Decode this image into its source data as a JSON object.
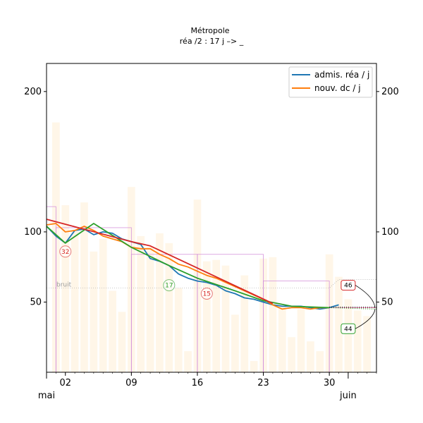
{
  "chart_data": {
    "type": "line",
    "title": "Métropole",
    "subtitle": "réa /2 : 17 j –> _",
    "x_range": [
      "2020-04-30",
      "2020-06-04"
    ],
    "y_range": [
      0,
      220
    ],
    "x_tick_labels": [
      {
        "date": "2020-05-02",
        "label": "02"
      },
      {
        "date": "2020-05-09",
        "label": "09"
      },
      {
        "date": "2020-05-16",
        "label": "16"
      },
      {
        "date": "2020-05-23",
        "label": "23"
      },
      {
        "date": "2020-05-30",
        "label": "30"
      }
    ],
    "x_secondary_labels": [
      {
        "date": "2020-04-30",
        "label": "mai"
      },
      {
        "date": "2020-06-01",
        "label": "juin"
      }
    ],
    "y_ticks": [
      50,
      100,
      200
    ],
    "y_ticks_right": [
      50,
      100,
      200
    ],
    "legend": {
      "placement": "top-right",
      "entries": [
        "admis. réa / j",
        "nouv. dc / j"
      ]
    },
    "noise_label": "bruit",
    "noise_level": 60,
    "noise_level_after": 66,
    "series": [
      {
        "name": "admis. réa / j",
        "color": "#1f77b4",
        "x": [
          "2020-04-30",
          "2020-05-01",
          "2020-05-02",
          "2020-05-03",
          "2020-05-04",
          "2020-05-05",
          "2020-05-06",
          "2020-05-07",
          "2020-05-08",
          "2020-05-09",
          "2020-05-10",
          "2020-05-11",
          "2020-05-12",
          "2020-05-13",
          "2020-05-14",
          "2020-05-15",
          "2020-05-16",
          "2020-05-17",
          "2020-05-18",
          "2020-05-19",
          "2020-05-20",
          "2020-05-21",
          "2020-05-22",
          "2020-05-23",
          "2020-05-24",
          "2020-05-25",
          "2020-05-26",
          "2020-05-27",
          "2020-05-28",
          "2020-05-29",
          "2020-05-30",
          "2020-05-31"
        ],
        "values": [
          104,
          97,
          92,
          101,
          102,
          98,
          100,
          99,
          95,
          93,
          91,
          81,
          79,
          76,
          70,
          67,
          65,
          64,
          62,
          58,
          56,
          53,
          52,
          50,
          48,
          47,
          47,
          47,
          46,
          45,
          46,
          48
        ]
      },
      {
        "name": "nouv. dc / j",
        "color": "#ff7f0e",
        "x": [
          "2020-04-30",
          "2020-05-01",
          "2020-05-02",
          "2020-05-03",
          "2020-05-04",
          "2020-05-05",
          "2020-05-06",
          "2020-05-07",
          "2020-05-08",
          "2020-05-09",
          "2020-05-10",
          "2020-05-11",
          "2020-05-12",
          "2020-05-13",
          "2020-05-14",
          "2020-05-15",
          "2020-05-16",
          "2020-05-17",
          "2020-05-18",
          "2020-05-19",
          "2020-05-20",
          "2020-05-21",
          "2020-05-22",
          "2020-05-23",
          "2020-05-24",
          "2020-05-25",
          "2020-05-26",
          "2020-05-27",
          "2020-05-28",
          "2020-05-29",
          "2020-05-30"
        ],
        "values": [
          105,
          106,
          100,
          101,
          104,
          101,
          97,
          95,
          93,
          89,
          88,
          88,
          84,
          81,
          77,
          75,
          72,
          69,
          67,
          64,
          61,
          58,
          55,
          52,
          48,
          45,
          46,
          46,
          45,
          46,
          46
        ]
      },
      {
        "name": "",
        "color": "#2ca02c",
        "x": [
          "2020-04-30",
          "2020-05-02",
          "2020-05-05",
          "2020-05-09",
          "2020-05-13",
          "2020-05-16",
          "2020-05-20",
          "2020-05-23",
          "2020-05-26",
          "2020-05-30"
        ],
        "values": [
          104,
          92,
          106,
          89,
          76,
          67,
          58,
          51,
          47,
          46
        ]
      },
      {
        "name": "",
        "color": "#d62728",
        "x": [
          "2020-04-30",
          "2020-05-09",
          "2020-05-11",
          "2020-05-24"
        ],
        "values": [
          109,
          93,
          90,
          49
        ]
      }
    ],
    "daily_bars": {
      "color": "#fff3e0",
      "x": [
        "2020-05-01",
        "2020-05-02",
        "2020-05-03",
        "2020-05-04",
        "2020-05-05",
        "2020-05-06",
        "2020-05-07",
        "2020-05-08",
        "2020-05-09",
        "2020-05-10",
        "2020-05-11",
        "2020-05-12",
        "2020-05-13",
        "2020-05-14",
        "2020-05-15",
        "2020-05-16",
        "2020-05-17",
        "2020-05-18",
        "2020-05-19",
        "2020-05-20",
        "2020-05-21",
        "2020-05-22",
        "2020-05-23",
        "2020-05-24",
        "2020-05-25",
        "2020-05-26",
        "2020-05-27",
        "2020-05-28",
        "2020-05-29",
        "2020-05-30",
        "2020-05-31",
        "2020-06-01",
        "2020-06-02",
        "2020-06-03"
      ],
      "values": [
        178,
        119,
        101,
        121,
        86,
        95,
        58,
        43,
        132,
        97,
        89,
        99,
        92,
        60,
        15,
        123,
        79,
        80,
        76,
        41,
        69,
        8,
        81,
        82,
        47,
        25,
        45,
        22,
        15,
        84,
        68,
        52,
        44,
        40
      ]
    },
    "weekly_boxes": {
      "color": "#d08ad8",
      "x_start": [
        "2020-04-30",
        "2020-05-01",
        "2020-05-09",
        "2020-05-16",
        "2020-05-23",
        "2020-05-30"
      ],
      "x_end": [
        "2020-05-01",
        "2020-05-09",
        "2020-05-16",
        "2020-05-23",
        "2020-05-30",
        "2020-06-04"
      ],
      "values": [
        118,
        103,
        84,
        84,
        65,
        46
      ]
    },
    "forecast": {
      "x": [
        "2020-05-30",
        "2020-06-04"
      ],
      "red_values": [
        46,
        46
      ],
      "green_values": [
        46,
        45
      ]
    },
    "annotations": [
      {
        "text": "32",
        "x": "2020-05-02",
        "y": 86,
        "color": "#d62728",
        "style": "circle"
      },
      {
        "text": "17",
        "x": "2020-05-13",
        "y": 62,
        "color": "#2ca02c",
        "style": "circle"
      },
      {
        "text": "15",
        "x": "2020-05-17",
        "y": 56,
        "color": "#d62728",
        "style": "circle"
      },
      {
        "text": "46",
        "x": "2020-06-01",
        "y": 62,
        "color": "#d62728",
        "style": "box"
      },
      {
        "text": "44",
        "x": "2020-06-01",
        "y": 31,
        "color": "#2ca02c",
        "style": "box"
      }
    ],
    "grid": false
  }
}
